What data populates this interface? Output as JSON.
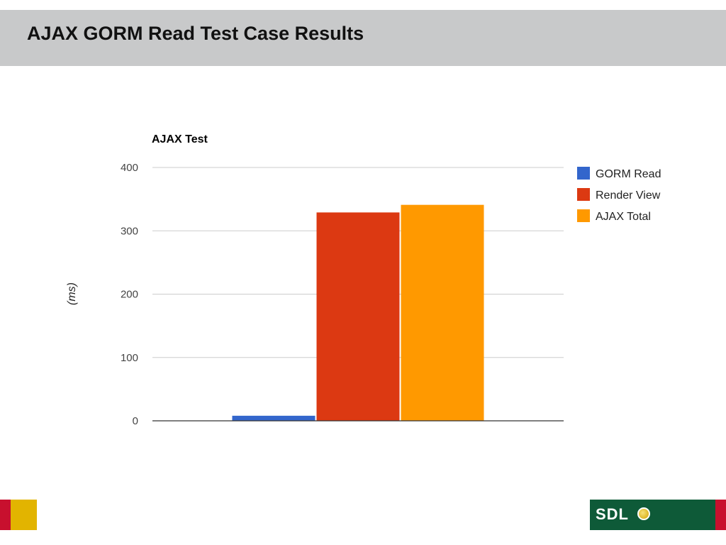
{
  "slide": {
    "title": "AJAX GORM Read Test Case Results"
  },
  "logo": {
    "text": "SDL"
  },
  "colors": {
    "header_band": "#c8c9ca",
    "gridline": "#cccccc",
    "axis": "#333333",
    "footer_red": "#c8102e",
    "footer_yellow": "#e2b400",
    "footer_green": "#0e5a38"
  },
  "chart_data": {
    "type": "bar",
    "title": "AJAX Test",
    "xlabel": "",
    "ylabel": "(ms)",
    "ylim": [
      0,
      400
    ],
    "yticks": [
      0,
      100,
      200,
      300,
      400
    ],
    "grid": true,
    "legend_position": "right",
    "categories": [
      ""
    ],
    "series": [
      {
        "name": "GORM Read",
        "values": [
          8
        ],
        "color": "#3366cc"
      },
      {
        "name": "Render View",
        "values": [
          329
        ],
        "color": "#dc3912"
      },
      {
        "name": "AJAX Total",
        "values": [
          341
        ],
        "color": "#ff9900"
      }
    ]
  }
}
